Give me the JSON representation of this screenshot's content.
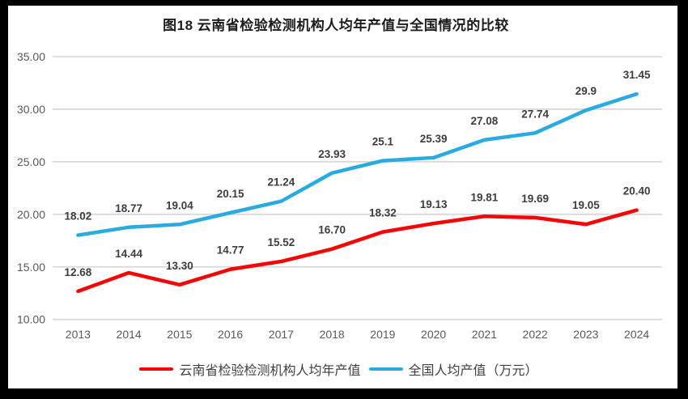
{
  "title": "图18  云南省检验检测机构人均年产值与全国情况的比较",
  "frame": {
    "border_color": "#000000",
    "background_color": "#ffffff"
  },
  "chart_data": {
    "type": "line",
    "title": "图18  云南省检验检测机构人均年产值与全国情况的比较",
    "categories": [
      "2013",
      "2014",
      "2015",
      "2016",
      "2017",
      "2018",
      "2019",
      "2020",
      "2021",
      "2022",
      "2023",
      "2024"
    ],
    "series": [
      {
        "name": "云南省检验检测机构人均年产值",
        "color": "#f50505",
        "values": [
          12.68,
          14.44,
          13.3,
          14.77,
          15.52,
          16.7,
          18.32,
          19.13,
          19.81,
          19.69,
          19.05,
          20.4
        ],
        "labels": [
          "12.68",
          "14.44",
          "13.30",
          "14.77",
          "15.52",
          "16.70",
          "18.32",
          "19.13",
          "19.81",
          "19.69",
          "19.05",
          "20.40"
        ]
      },
      {
        "name": "全国人均产值（万元）",
        "color": "#29abe2",
        "values": [
          18.02,
          18.77,
          19.04,
          20.15,
          21.24,
          23.93,
          25.1,
          25.39,
          27.08,
          27.74,
          29.9,
          31.45
        ],
        "labels": [
          "18.02",
          "18.77",
          "19.04",
          "20.15",
          "21.24",
          "23.93",
          "25.1",
          "25.39",
          "27.08",
          "27.74",
          "29.9",
          "31.45"
        ]
      }
    ],
    "xlabel": "",
    "ylabel": "",
    "ylim": [
      10,
      35
    ],
    "y_ticks": [
      "10.00",
      "15.00",
      "20.00",
      "25.00",
      "30.00",
      "35.00"
    ],
    "grid": "horizontal",
    "gridline_color": "#d9d9d9",
    "legend_position": "bottom",
    "tick_color": "#595959",
    "data_label_color": "#3d3d3d"
  }
}
